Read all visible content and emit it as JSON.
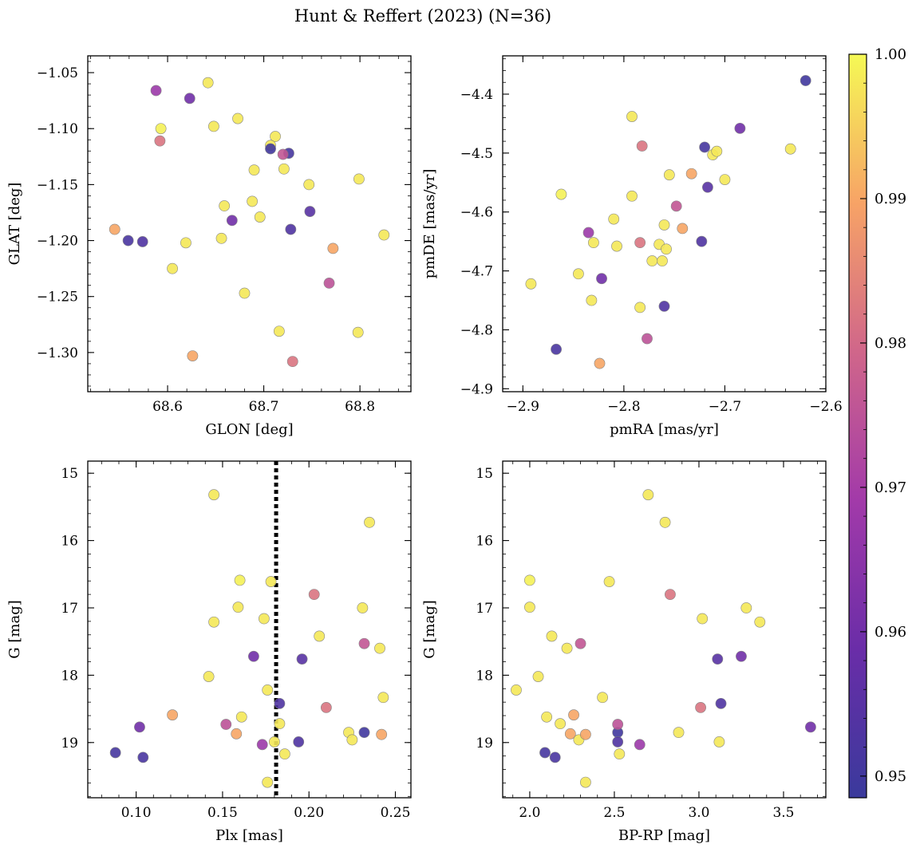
{
  "chart_data": {
    "type": "scatter",
    "title": "Hunt & Reffert (2023) (N=36)",
    "colorbar": {
      "min": 0.9485,
      "max": 1.0,
      "ticks": [
        0.95,
        0.96,
        0.97,
        0.98,
        0.99,
        1.0
      ],
      "tick_labels": [
        "0.95",
        "0.96",
        "0.97",
        "0.98",
        "0.99",
        "1.00"
      ],
      "colormap": "plasma"
    },
    "stars": [
      {
        "glon": 68.588,
        "glat": -1.066,
        "pmra": -2.835,
        "pmde": -4.635,
        "plx": 0.173,
        "g": 19.03,
        "bprp": 2.65,
        "prob": 0.968
      },
      {
        "glon": 68.623,
        "glat": -1.073,
        "pmra": -2.685,
        "pmde": -4.458,
        "plx": 0.168,
        "g": 17.72,
        "bprp": 3.25,
        "prob": 0.96
      },
      {
        "glon": 68.642,
        "glat": -1.059,
        "pmra": -2.792,
        "pmde": -4.438,
        "plx": 0.145,
        "g": 15.32,
        "bprp": 2.7,
        "prob": 0.998
      },
      {
        "glon": 68.593,
        "glat": -1.1,
        "pmra": -2.862,
        "pmde": -4.57,
        "plx": 0.16,
        "g": 16.59,
        "bprp": 2.0,
        "prob": 0.999
      },
      {
        "glon": 68.592,
        "glat": -1.111,
        "pmra": -2.782,
        "pmde": -4.488,
        "plx": 0.203,
        "g": 16.8,
        "bprp": 2.83,
        "prob": 0.982
      },
      {
        "glon": 68.673,
        "glat": -1.091,
        "pmra": -2.7,
        "pmde": -4.545,
        "plx": 0.223,
        "g": 18.85,
        "bprp": 2.88,
        "prob": 0.998
      },
      {
        "glon": 68.648,
        "glat": -1.098,
        "pmra": -2.755,
        "pmde": -4.537,
        "plx": 0.183,
        "g": 18.72,
        "bprp": 2.18,
        "prob": 0.998
      },
      {
        "glon": 68.712,
        "glat": -1.107,
        "pmra": -2.712,
        "pmde": -4.503,
        "plx": 0.235,
        "g": 15.73,
        "bprp": 2.8,
        "prob": 0.998
      },
      {
        "glon": 68.707,
        "glat": -1.115,
        "pmra": -2.708,
        "pmde": -4.497,
        "plx": 0.231,
        "g": 17.0,
        "bprp": 3.28,
        "prob": 0.998
      },
      {
        "glon": 68.707,
        "glat": -1.118,
        "pmra": -2.62,
        "pmde": -4.377,
        "plx": 0.232,
        "g": 18.85,
        "bprp": 2.52,
        "prob": 0.95
      },
      {
        "glon": 68.726,
        "glat": -1.122,
        "pmra": -2.72,
        "pmde": -4.49,
        "plx": 0.088,
        "g": 19.15,
        "bprp": 2.09,
        "prob": 0.951
      },
      {
        "glon": 68.72,
        "glat": -1.123,
        "pmra": -2.748,
        "pmde": -4.59,
        "plx": 0.232,
        "g": 17.53,
        "bprp": 2.3,
        "prob": 0.976
      },
      {
        "glon": 68.69,
        "glat": -1.137,
        "pmra": -2.635,
        "pmde": -4.493,
        "plx": 0.243,
        "g": 18.33,
        "bprp": 2.43,
        "prob": 0.998
      },
      {
        "glon": 68.721,
        "glat": -1.136,
        "pmra": -2.792,
        "pmde": -4.573,
        "plx": 0.206,
        "g": 17.42,
        "bprp": 2.13,
        "prob": 0.998
      },
      {
        "glon": 68.747,
        "glat": -1.15,
        "pmra": -2.76,
        "pmde": -4.622,
        "plx": 0.142,
        "g": 18.02,
        "bprp": 2.05,
        "prob": 0.998
      },
      {
        "glon": 68.799,
        "glat": -1.145,
        "pmra": -2.83,
        "pmde": -4.652,
        "plx": 0.241,
        "g": 17.6,
        "bprp": 2.22,
        "prob": 0.998
      },
      {
        "glon": 68.659,
        "glat": -1.169,
        "pmra": -2.81,
        "pmde": -4.612,
        "plx": 0.145,
        "g": 17.21,
        "bprp": 3.36,
        "prob": 0.998
      },
      {
        "glon": 68.688,
        "glat": -1.165,
        "pmra": -2.765,
        "pmde": -4.655,
        "plx": 0.174,
        "g": 17.16,
        "bprp": 3.02,
        "prob": 0.998
      },
      {
        "glon": 68.748,
        "glat": -1.174,
        "pmra": -2.717,
        "pmde": -4.558,
        "plx": 0.196,
        "g": 17.76,
        "bprp": 3.11,
        "prob": 0.955
      },
      {
        "glon": 68.667,
        "glat": -1.182,
        "pmra": -2.822,
        "pmde": -4.713,
        "plx": 0.102,
        "g": 18.77,
        "bprp": 3.66,
        "prob": 0.96
      },
      {
        "glon": 68.696,
        "glat": -1.179,
        "pmra": -2.762,
        "pmde": -4.683,
        "plx": 0.159,
        "g": 16.99,
        "bprp": 2.0,
        "prob": 0.998
      },
      {
        "glon": 68.545,
        "glat": -1.19,
        "pmra": -2.742,
        "pmde": -4.628,
        "plx": 0.121,
        "g": 18.59,
        "bprp": 2.26,
        "prob": 0.99
      },
      {
        "glon": 68.559,
        "glat": -1.2,
        "pmra": -2.867,
        "pmde": -4.833,
        "plx": 0.104,
        "g": 19.22,
        "bprp": 2.15,
        "prob": 0.952
      },
      {
        "glon": 68.574,
        "glat": -1.201,
        "pmra": -2.76,
        "pmde": -4.76,
        "plx": 0.183,
        "g": 18.42,
        "bprp": 3.13,
        "prob": 0.953
      },
      {
        "glon": 68.619,
        "glat": -1.202,
        "pmra": -2.758,
        "pmde": -4.663,
        "plx": 0.18,
        "g": 18.99,
        "bprp": 3.12,
        "prob": 0.998
      },
      {
        "glon": 68.656,
        "glat": -1.198,
        "pmra": -2.772,
        "pmde": -4.683,
        "plx": 0.176,
        "g": 18.22,
        "bprp": 1.92,
        "prob": 0.998
      },
      {
        "glon": 68.728,
        "glat": -1.19,
        "pmra": -2.723,
        "pmde": -4.65,
        "plx": 0.194,
        "g": 18.99,
        "bprp": 2.52,
        "prob": 0.953
      },
      {
        "glon": 68.825,
        "glat": -1.195,
        "pmra": -2.807,
        "pmde": -4.658,
        "plx": 0.186,
        "g": 19.17,
        "bprp": 2.53,
        "prob": 0.998
      },
      {
        "glon": 68.772,
        "glat": -1.207,
        "pmra": -2.733,
        "pmde": -4.535,
        "plx": 0.158,
        "g": 18.87,
        "bprp": 2.24,
        "prob": 0.99
      },
      {
        "glon": 68.605,
        "glat": -1.225,
        "pmra": -2.845,
        "pmde": -4.705,
        "plx": 0.161,
        "g": 18.62,
        "bprp": 2.1,
        "prob": 0.998
      },
      {
        "glon": 68.768,
        "glat": -1.238,
        "pmra": -2.777,
        "pmde": -4.815,
        "plx": 0.152,
        "g": 18.73,
        "bprp": 2.52,
        "prob": 0.975
      },
      {
        "glon": 68.68,
        "glat": -1.247,
        "pmra": -2.832,
        "pmde": -4.75,
        "plx": 0.176,
        "g": 19.59,
        "bprp": 2.33,
        "prob": 0.998
      },
      {
        "glon": 68.716,
        "glat": -1.281,
        "pmra": -2.784,
        "pmde": -4.762,
        "plx": 0.178,
        "g": 16.61,
        "bprp": 2.47,
        "prob": 0.998
      },
      {
        "glon": 68.798,
        "glat": -1.282,
        "pmra": -2.892,
        "pmde": -4.722,
        "plx": 0.225,
        "g": 18.96,
        "bprp": 2.29,
        "prob": 0.998
      },
      {
        "glon": 68.626,
        "glat": -1.303,
        "pmra": -2.824,
        "pmde": -4.857,
        "plx": 0.242,
        "g": 18.88,
        "bprp": 2.33,
        "prob": 0.99
      },
      {
        "glon": 68.73,
        "glat": -1.308,
        "pmra": -2.784,
        "pmde": -4.652,
        "plx": 0.21,
        "g": 18.48,
        "bprp": 3.01,
        "prob": 0.982
      }
    ],
    "panels": [
      {
        "id": "glon-glat",
        "xkey": "glon",
        "ykey": "glat",
        "xlabel": "GLON [deg]",
        "ylabel": "GLAT [deg]",
        "xlim": [
          68.517,
          68.853
        ],
        "ylim": [
          -1.335,
          -1.035
        ],
        "invert_y": false,
        "xticks": [
          68.6,
          68.7,
          68.8
        ],
        "xtick_labels": [
          "68.6",
          "68.7",
          "68.8"
        ],
        "yticks": [
          -1.05,
          -1.1,
          -1.15,
          -1.2,
          -1.25,
          -1.3
        ],
        "ytick_labels": [
          "−1.05",
          "−1.10",
          "−1.15",
          "−1.20",
          "−1.25",
          "−1.30"
        ],
        "x_minor_step": 0.02,
        "y_minor_step": 0.01
      },
      {
        "id": "pmra-pmde",
        "xkey": "pmra",
        "ykey": "pmde",
        "xlabel": "pmRA [mas/yr]",
        "ylabel": "pmDE [mas/yr]",
        "xlim": [
          -2.92,
          -2.6
        ],
        "ylim": [
          -4.905,
          -4.335
        ],
        "invert_y": false,
        "xticks": [
          -2.9,
          -2.8,
          -2.7,
          -2.6
        ],
        "xtick_labels": [
          "−2.9",
          "−2.8",
          "−2.7",
          "−2.6"
        ],
        "yticks": [
          -4.4,
          -4.5,
          -4.6,
          -4.7,
          -4.8,
          -4.9
        ],
        "ytick_labels": [
          "−4.4",
          "−4.5",
          "−4.6",
          "−4.7",
          "−4.8",
          "−4.9"
        ],
        "x_minor_step": 0.02,
        "y_minor_step": 0.02
      },
      {
        "id": "plx-g",
        "xkey": "plx",
        "ykey": "g",
        "xlabel": "Plx [mas]",
        "ylabel": "G [mag]",
        "xlim": [
          0.072,
          0.259
        ],
        "ylim": [
          14.82,
          19.82
        ],
        "invert_y": true,
        "xticks": [
          0.1,
          0.15,
          0.2,
          0.25
        ],
        "xtick_labels": [
          "0.10",
          "0.15",
          "0.20",
          "0.25"
        ],
        "yticks": [
          15,
          16,
          17,
          18,
          19
        ],
        "ytick_labels": [
          "15",
          "16",
          "17",
          "18",
          "19"
        ],
        "x_minor_step": 0.01,
        "y_minor_step": 0.2,
        "vline": {
          "x": 0.181,
          "style": "dotted"
        }
      },
      {
        "id": "bprp-g",
        "xkey": "bprp",
        "ykey": "g",
        "xlabel": "BP-RP [mag]",
        "ylabel": "G [mag]",
        "xlim": [
          1.84,
          3.75
        ],
        "ylim": [
          14.82,
          19.82
        ],
        "invert_y": true,
        "xticks": [
          2.0,
          2.5,
          3.0,
          3.5
        ],
        "xtick_labels": [
          "2.0",
          "2.5",
          "3.0",
          "3.5"
        ],
        "yticks": [
          15,
          16,
          17,
          18,
          19
        ],
        "ytick_labels": [
          "15",
          "16",
          "17",
          "18",
          "19"
        ],
        "x_minor_step": 0.1,
        "y_minor_step": 0.2
      }
    ]
  }
}
